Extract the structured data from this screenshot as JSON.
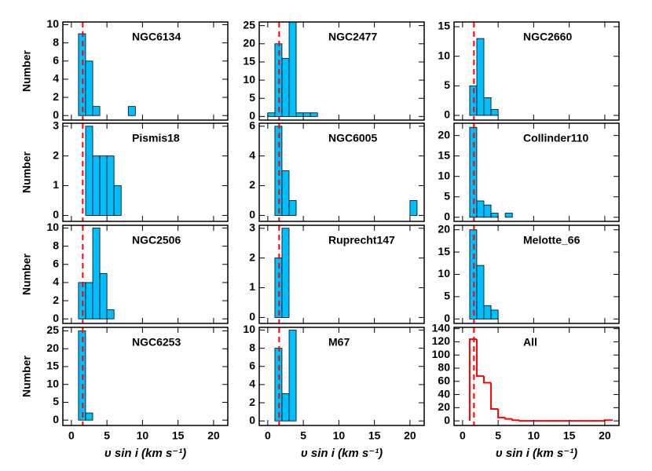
{
  "chart_data": [
    {
      "type": "histogram",
      "title": "NGC6134",
      "ylabel": "Number",
      "bins": [
        1,
        2,
        3,
        4,
        5,
        6,
        7,
        8,
        9
      ],
      "values": [
        9,
        6,
        1,
        0,
        0,
        0,
        0,
        1
      ],
      "color": "#00bfff",
      "vline": 1.6,
      "vline_color": "#ff0000",
      "xlim": [
        -1.2,
        22
      ],
      "xticks": [
        0,
        5,
        10,
        15,
        20
      ],
      "ylim": [
        -0.5,
        10.3
      ],
      "yticks": [
        0,
        2,
        4,
        6,
        8,
        10
      ]
    },
    {
      "type": "histogram",
      "title": "NGC2477",
      "bins": [
        0,
        1,
        2,
        3,
        4,
        5,
        6,
        7
      ],
      "values": [
        1,
        20,
        16,
        26,
        1,
        1,
        1
      ],
      "color": "#00bfff",
      "vline": 1.6,
      "vline_color": "#ff0000",
      "xlim": [
        -1.2,
        22
      ],
      "xticks": [
        0,
        5,
        10,
        15,
        20
      ],
      "ylim": [
        -1,
        26
      ],
      "yticks": [
        0,
        5,
        10,
        15,
        20,
        25
      ]
    },
    {
      "type": "histogram",
      "title": "NGC2660",
      "bins": [
        1,
        2,
        3,
        4,
        5
      ],
      "values": [
        5,
        13,
        3,
        1
      ],
      "color": "#00bfff",
      "vline": 1.6,
      "vline_color": "#ff0000",
      "xlim": [
        -1.2,
        22
      ],
      "xticks": [
        0,
        5,
        10,
        15,
        20
      ],
      "ylim": [
        -0.8,
        15.8
      ],
      "yticks": [
        0,
        5,
        10,
        15
      ]
    },
    {
      "type": "histogram",
      "title": "Pismis18",
      "ylabel": "Number",
      "bins": [
        2,
        3,
        4,
        5,
        6,
        7
      ],
      "values": [
        3,
        2,
        2,
        2,
        1
      ],
      "color": "#00bfff",
      "vline": 1.6,
      "vline_color": "#ff0000",
      "xlim": [
        -1.2,
        22
      ],
      "xticks": [
        0,
        5,
        10,
        15,
        20
      ],
      "ylim": [
        -0.2,
        3.1
      ],
      "yticks": [
        0,
        1,
        2,
        3
      ]
    },
    {
      "type": "histogram",
      "title": "NGC6005",
      "bins": [
        1,
        2,
        3,
        4,
        5,
        6,
        7,
        8,
        9,
        10,
        11,
        12,
        13,
        14,
        15,
        16,
        17,
        18,
        19,
        20,
        21
      ],
      "values": [
        6,
        3,
        1,
        0,
        0,
        0,
        0,
        0,
        0,
        0,
        0,
        0,
        0,
        0,
        0,
        0,
        0,
        0,
        0,
        1
      ],
      "color": "#00bfff",
      "vline": 1.6,
      "vline_color": "#ff0000",
      "xlim": [
        -1.2,
        22
      ],
      "xticks": [
        0,
        5,
        10,
        15,
        20
      ],
      "ylim": [
        -0.4,
        6.2
      ],
      "yticks": [
        0,
        2,
        4,
        6
      ]
    },
    {
      "type": "histogram",
      "title": "Collinder110",
      "bins": [
        1,
        2,
        3,
        4,
        5,
        6,
        7
      ],
      "values": [
        22,
        4,
        3,
        1,
        0,
        1
      ],
      "color": "#00bfff",
      "vline": 1.6,
      "vline_color": "#ff0000",
      "xlim": [
        -1.2,
        22
      ],
      "xticks": [
        0,
        5,
        10,
        15,
        20
      ],
      "ylim": [
        -1,
        23
      ],
      "yticks": [
        0,
        5,
        10,
        15,
        20
      ]
    },
    {
      "type": "histogram",
      "title": "NGC2506",
      "ylabel": "Number",
      "bins": [
        1,
        2,
        3,
        4,
        5,
        6
      ],
      "values": [
        4,
        4,
        10,
        5,
        1
      ],
      "color": "#00bfff",
      "vline": 1.6,
      "vline_color": "#ff0000",
      "xlim": [
        -1.2,
        22
      ],
      "xticks": [
        0,
        5,
        10,
        15,
        20
      ],
      "ylim": [
        -0.5,
        10.3
      ],
      "yticks": [
        0,
        2,
        4,
        6,
        8,
        10
      ]
    },
    {
      "type": "histogram",
      "title": "Ruprecht147",
      "bins": [
        1,
        2,
        3
      ],
      "values": [
        2,
        3
      ],
      "color": "#00bfff",
      "vline": 1.6,
      "vline_color": "#ff0000",
      "xlim": [
        -1.2,
        22
      ],
      "xticks": [
        0,
        5,
        10,
        15,
        20
      ],
      "ylim": [
        -0.2,
        3.1
      ],
      "yticks": [
        0,
        1,
        2,
        3
      ]
    },
    {
      "type": "histogram",
      "title": "Melotte_66",
      "bins": [
        1,
        2,
        3,
        4,
        5
      ],
      "values": [
        20,
        12,
        3,
        2
      ],
      "color": "#00bfff",
      "vline": 1.6,
      "vline_color": "#ff0000",
      "xlim": [
        -1.2,
        22
      ],
      "xticks": [
        0,
        5,
        10,
        15,
        20
      ],
      "ylim": [
        -1,
        21
      ],
      "yticks": [
        0,
        5,
        10,
        15,
        20
      ]
    },
    {
      "type": "histogram",
      "title": "NGC6253",
      "ylabel": "Number",
      "xlabel": "υ sin i  (km s⁻¹)",
      "bins": [
        1,
        2,
        3
      ],
      "values": [
        25,
        2
      ],
      "color": "#00bfff",
      "vline": 1.6,
      "vline_color": "#ff0000",
      "xlim": [
        -1.2,
        22
      ],
      "xticks": [
        0,
        5,
        10,
        15,
        20
      ],
      "ylim": [
        -1.5,
        26
      ],
      "yticks": [
        0,
        5,
        10,
        15,
        20,
        25
      ]
    },
    {
      "type": "histogram",
      "title": "M67",
      "xlabel": "υ sin i  (km s⁻¹)",
      "bins": [
        1,
        2,
        3,
        4
      ],
      "values": [
        8,
        3,
        10
      ],
      "color": "#00bfff",
      "vline": 1.6,
      "vline_color": "#ff0000",
      "xlim": [
        -1.2,
        22
      ],
      "xticks": [
        0,
        5,
        10,
        15,
        20
      ],
      "ylim": [
        -0.5,
        10.3
      ],
      "yticks": [
        0,
        2,
        4,
        6,
        8,
        10
      ]
    },
    {
      "type": "histogram",
      "style": "step",
      "title": "All",
      "xlabel": "υ sin i  (km s⁻¹)",
      "bins": [
        1,
        2,
        3,
        4,
        5,
        6,
        7,
        8,
        9,
        10,
        11,
        12,
        13,
        14,
        15,
        16,
        17,
        18,
        19,
        20,
        21
      ],
      "values": [
        124,
        68,
        58,
        18,
        5,
        3,
        1,
        0,
        0,
        0,
        0,
        0,
        0,
        0,
        0,
        0,
        0,
        0,
        0,
        1
      ],
      "color": "#ff0000",
      "vline": 1.6,
      "vline_color": "#ff0000",
      "xlim": [
        -1.2,
        22
      ],
      "xticks": [
        0,
        5,
        10,
        15,
        20
      ],
      "ylim": [
        -7,
        142
      ],
      "yticks": [
        0,
        20,
        40,
        60,
        80,
        100,
        120,
        140
      ]
    }
  ]
}
